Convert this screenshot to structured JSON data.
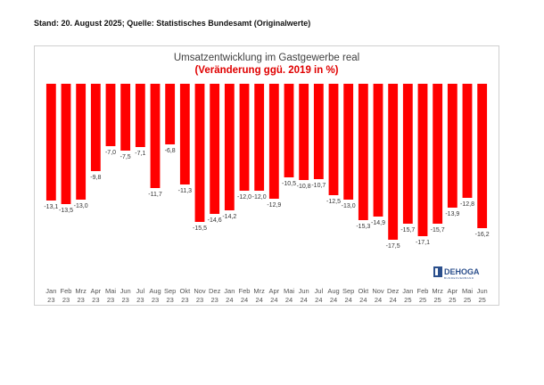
{
  "header": {
    "source_note": "Stand: 20. August 2025; Quelle: Statistisches Bundesamt (Originalwerte)"
  },
  "logo": {
    "name": "DEHOGA",
    "tagline": "BUNDESVERBAND"
  },
  "chart_data": {
    "type": "bar",
    "title": "Umsatzentwicklung im Gastgewerbe real",
    "subtitle": "(Veränderung ggü. 2019 in %)",
    "bar_color": "#ff0000",
    "title_color": "#404040",
    "subtitle_color": "#e00000",
    "categories": [
      [
        "Jan",
        "23"
      ],
      [
        "Feb",
        "23"
      ],
      [
        "Mrz",
        "23"
      ],
      [
        "Apr",
        "23"
      ],
      [
        "Mai",
        "23"
      ],
      [
        "Jun",
        "23"
      ],
      [
        "Jul",
        "23"
      ],
      [
        "Aug",
        "23"
      ],
      [
        "Sep",
        "23"
      ],
      [
        "Okt",
        "23"
      ],
      [
        "Nov",
        "23"
      ],
      [
        "Dez",
        "23"
      ],
      [
        "Jan",
        "24"
      ],
      [
        "Feb",
        "24"
      ],
      [
        "Mrz",
        "24"
      ],
      [
        "Apr",
        "24"
      ],
      [
        "Mai",
        "24"
      ],
      [
        "Jun",
        "24"
      ],
      [
        "Jul",
        "24"
      ],
      [
        "Aug",
        "24"
      ],
      [
        "Sep",
        "24"
      ],
      [
        "Okt",
        "24"
      ],
      [
        "Nov",
        "24"
      ],
      [
        "Dez",
        "24"
      ],
      [
        "Jan",
        "25"
      ],
      [
        "Feb",
        "25"
      ],
      [
        "Mrz",
        "25"
      ],
      [
        "Apr",
        "25"
      ],
      [
        "Mai",
        "25"
      ],
      [
        "Jun",
        "25"
      ]
    ],
    "values": [
      -13.1,
      -13.5,
      -13.0,
      -9.8,
      -7.0,
      -7.5,
      -7.1,
      -11.7,
      -6.8,
      -11.3,
      -15.5,
      -14.6,
      -14.2,
      -12.0,
      -12.0,
      -12.9,
      -10.5,
      -10.8,
      -10.7,
      -12.5,
      -13.0,
      -15.3,
      -14.9,
      -17.5,
      -15.7,
      -17.1,
      -15.7,
      -13.9,
      -12.8,
      -16.2
    ],
    "value_labels": [
      "-13,1",
      "-13,5",
      "-13,0",
      "-9,8",
      "-7,0",
      "-7,5",
      "-7,1",
      "-11,7",
      "-6,8",
      "-11,3",
      "-15,5",
      "-14,6",
      "-14,2",
      "-12,0",
      "-12,0",
      "-12,9",
      "-10,5",
      "-10,8",
      "-10,7",
      "-12,5",
      "-13,0",
      "-15,3",
      "-14,9",
      "-17,5",
      "-15,7",
      "-17,1",
      "-15,7",
      "-13,9",
      "-12,8",
      "-16,2"
    ],
    "ylim": [
      -20,
      0
    ],
    "grid": false,
    "legend": false
  }
}
